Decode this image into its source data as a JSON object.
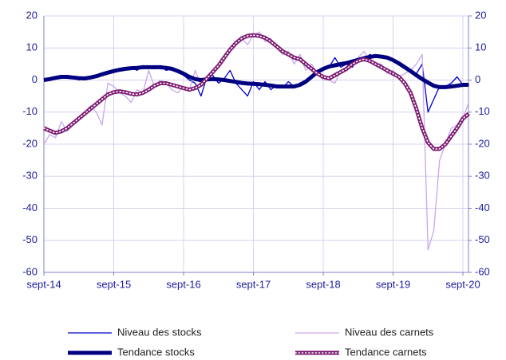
{
  "chart_data": {
    "type": "line",
    "categories": [
      "sept-14",
      null,
      null,
      null,
      null,
      null,
      null,
      null,
      null,
      null,
      null,
      null,
      "sept-15",
      null,
      null,
      null,
      null,
      null,
      null,
      null,
      null,
      null,
      null,
      null,
      "sept-16",
      null,
      null,
      null,
      null,
      null,
      null,
      null,
      null,
      null,
      null,
      null,
      "sept-17",
      null,
      null,
      null,
      null,
      null,
      null,
      null,
      null,
      null,
      null,
      null,
      "sept-18",
      null,
      null,
      null,
      null,
      null,
      null,
      null,
      null,
      null,
      null,
      null,
      "sept-19",
      null,
      null,
      null,
      null,
      null,
      null,
      null,
      null,
      null,
      null,
      null,
      "sept-20",
      null
    ],
    "series": [
      {
        "name": "Niveau des stocks",
        "color": "#0000cc",
        "style": "thin",
        "values": [
          0,
          0.5,
          1,
          1.5,
          0.5,
          1,
          0,
          1,
          0.5,
          1,
          2,
          2.5,
          2.5,
          3.5,
          3,
          4,
          3,
          4.5,
          4,
          3.5,
          4.5,
          3,
          3.5,
          2.5,
          1.5,
          0,
          -1,
          -5,
          1,
          1.5,
          -1,
          0.5,
          3,
          -1,
          -3,
          -5,
          -0.5,
          -3,
          -0.5,
          -3,
          -1.5,
          -2.5,
          -0.5,
          -2,
          -1,
          0,
          1,
          3,
          3,
          4,
          7,
          4,
          5,
          4,
          7,
          6,
          8,
          7,
          7.5,
          7,
          6,
          5,
          4,
          3,
          2,
          5,
          -10,
          -6,
          -2,
          -2,
          -1,
          1,
          -1.5,
          -1.5
        ]
      },
      {
        "name": "Niveau des carnets",
        "color": "#c9a6ee",
        "style": "thin",
        "values": [
          -20,
          -17,
          -18,
          -13,
          -16,
          -14,
          -12,
          -10,
          -8,
          -10,
          -14,
          -1,
          -2,
          -4,
          -5,
          -7,
          -3,
          -4,
          3,
          -2,
          0,
          -1,
          -3,
          -4,
          -2,
          -3,
          3,
          -2,
          0,
          3,
          5,
          6,
          10,
          12,
          13,
          11,
          14,
          15,
          12,
          13,
          10,
          8,
          9,
          5,
          8,
          3,
          5,
          2,
          0,
          0,
          -1,
          3,
          3,
          5,
          7,
          9,
          6,
          5,
          5,
          2,
          3,
          1,
          2,
          3,
          5,
          8,
          -53,
          -47,
          -25,
          -20,
          -15,
          -14,
          -12,
          -7
        ]
      },
      {
        "name": "Tendance stocks",
        "color": "#000080",
        "style": "thick",
        "values": [
          0,
          0.3,
          0.7,
          1,
          1,
          0.8,
          0.6,
          0.5,
          0.8,
          1.2,
          1.8,
          2.3,
          2.8,
          3.2,
          3.5,
          3.7,
          3.8,
          4,
          4,
          4,
          4,
          3.8,
          3.5,
          2.8,
          2,
          1,
          0.3,
          0,
          0.2,
          0.3,
          0.2,
          0,
          -0.3,
          -0.6,
          -0.9,
          -1.1,
          -1.2,
          -1.3,
          -1.5,
          -1.7,
          -2,
          -2,
          -2,
          -2,
          -1.5,
          -0.5,
          1,
          2.5,
          3.5,
          4.2,
          4.6,
          5,
          5.3,
          5.8,
          6.3,
          6.8,
          7.2,
          7.5,
          7.3,
          7,
          6.2,
          5.2,
          4,
          2.8,
          1.5,
          0.3,
          -0.8,
          -1.8,
          -2.2,
          -2.2,
          -2,
          -1.8,
          -1.5,
          -1.5
        ]
      },
      {
        "name": "Tendance carnets",
        "color": "#7b1a70",
        "style": "dotted",
        "values": [
          -15,
          -15.8,
          -16.5,
          -16,
          -15,
          -13.5,
          -12,
          -10.5,
          -9,
          -7.5,
          -6,
          -4.5,
          -3.8,
          -3.5,
          -3.8,
          -4.3,
          -4.5,
          -4,
          -3,
          -1.8,
          -1,
          -1,
          -1.5,
          -2,
          -2.5,
          -3,
          -2.5,
          -1.5,
          0.5,
          2.5,
          4.5,
          7,
          9.5,
          11.5,
          13,
          13.8,
          14,
          13.8,
          13.2,
          12,
          10.5,
          9,
          8,
          7,
          6.5,
          5,
          3.5,
          2,
          1,
          0.5,
          1.5,
          2.5,
          3.5,
          5,
          6,
          6.5,
          6,
          5,
          4,
          3,
          2,
          1,
          -1,
          -4,
          -9,
          -15,
          -19.5,
          -21.5,
          -21.5,
          -20,
          -17.5,
          -15,
          -12,
          -10.5
        ]
      }
    ],
    "ylim": [
      -60,
      20
    ],
    "yticks": [
      -60,
      -50,
      -40,
      -30,
      -20,
      -10,
      0,
      10,
      20
    ],
    "y2lim": [
      -60,
      20
    ],
    "y2ticks": [
      -60,
      -50,
      -40,
      -30,
      -20,
      -10,
      0,
      10,
      20
    ],
    "grid": true,
    "legend": "bottom"
  }
}
